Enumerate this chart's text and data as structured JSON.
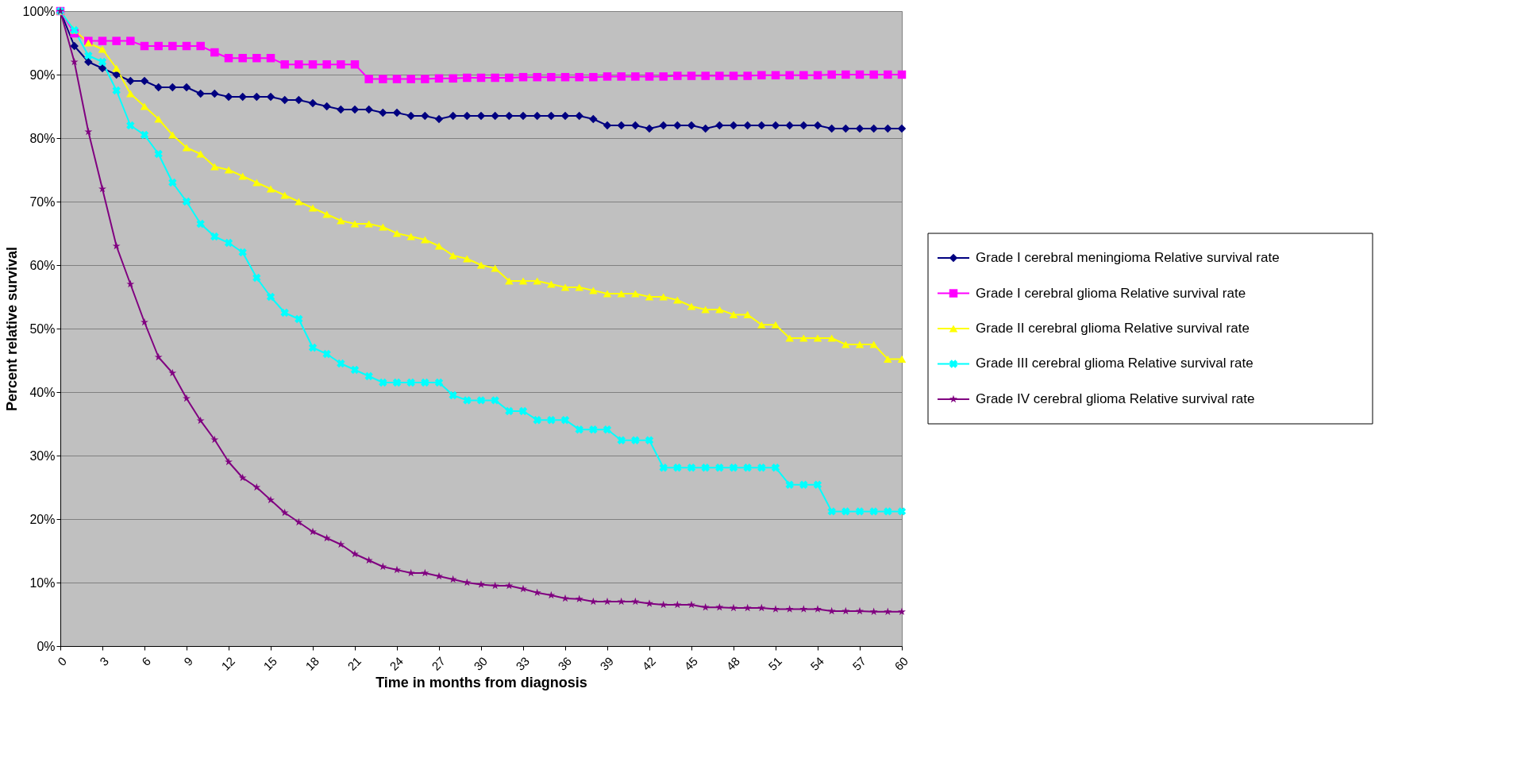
{
  "chart_data": {
    "type": "line",
    "xlabel": "Time in months from diagnosis",
    "ylabel": "Percent relative survival",
    "x": [
      0,
      1,
      2,
      3,
      4,
      5,
      6,
      7,
      8,
      9,
      10,
      11,
      12,
      13,
      14,
      15,
      16,
      17,
      18,
      19,
      20,
      21,
      22,
      23,
      24,
      25,
      26,
      27,
      28,
      29,
      30,
      31,
      32,
      33,
      34,
      35,
      36,
      37,
      38,
      39,
      40,
      41,
      42,
      43,
      44,
      45,
      46,
      47,
      48,
      49,
      50,
      51,
      52,
      53,
      54,
      55,
      56,
      57,
      58,
      59,
      60
    ],
    "xlim": [
      0,
      60
    ],
    "xticks": [
      0,
      3,
      6,
      9,
      12,
      15,
      18,
      21,
      24,
      27,
      30,
      33,
      36,
      39,
      42,
      45,
      48,
      51,
      54,
      57,
      60
    ],
    "ylim": [
      0,
      100
    ],
    "yticks": [
      {
        "value": 0,
        "label": "0%"
      },
      {
        "value": 10,
        "label": "10%"
      },
      {
        "value": 20,
        "label": "20%"
      },
      {
        "value": 30,
        "label": "30%"
      },
      {
        "value": 40,
        "label": "40%"
      },
      {
        "value": 50,
        "label": "50%"
      },
      {
        "value": 60,
        "label": "60%"
      },
      {
        "value": 70,
        "label": "70%"
      },
      {
        "value": 80,
        "label": "80%"
      },
      {
        "value": 90,
        "label": "90%"
      },
      {
        "value": 100,
        "label": "100%"
      }
    ],
    "grid": "y",
    "legend": "right",
    "series": [
      {
        "name": "Grade I cerebral meningioma Relative survival rate",
        "color": "#000080",
        "marker": "diamond",
        "values": [
          100,
          94.5,
          92,
          91,
          90,
          89,
          89,
          88,
          88,
          88,
          87,
          87,
          86.5,
          86.5,
          86.5,
          86.5,
          86,
          86,
          85.5,
          85,
          84.5,
          84.5,
          84.5,
          84,
          84,
          83.5,
          83.5,
          83,
          83.5,
          83.5,
          83.5,
          83.5,
          83.5,
          83.5,
          83.5,
          83.5,
          83.5,
          83.5,
          83,
          82,
          82,
          82,
          81.5,
          82,
          82,
          82,
          81.5,
          82,
          82,
          82,
          82,
          82,
          82,
          82,
          82,
          81.5,
          81.5,
          81.5,
          81.5,
          81.5,
          81.5
        ]
      },
      {
        "name": "Grade I cerebral glioma Relative survival rate",
        "color": "#ff00ff",
        "marker": "square",
        "values": [
          100,
          96.5,
          95.3,
          95.3,
          95.3,
          95.3,
          94.5,
          94.5,
          94.5,
          94.5,
          94.5,
          93.5,
          92.6,
          92.6,
          92.6,
          92.6,
          91.6,
          91.6,
          91.6,
          91.6,
          91.6,
          91.6,
          89.3,
          89.3,
          89.3,
          89.3,
          89.3,
          89.4,
          89.4,
          89.5,
          89.5,
          89.5,
          89.5,
          89.6,
          89.6,
          89.6,
          89.6,
          89.6,
          89.6,
          89.7,
          89.7,
          89.7,
          89.7,
          89.7,
          89.8,
          89.8,
          89.8,
          89.8,
          89.8,
          89.8,
          89.9,
          89.9,
          89.9,
          89.9,
          89.9,
          90,
          90,
          90,
          90,
          90,
          90
        ]
      },
      {
        "name": "Grade II cerebral glioma Relative survival rate",
        "color": "#ffff00",
        "marker": "triangle",
        "values": [
          100,
          97,
          95,
          94,
          91,
          87,
          85,
          83,
          80.5,
          78.5,
          77.5,
          75.5,
          75,
          74,
          73,
          72,
          71,
          70,
          69,
          68,
          67,
          66.5,
          66.5,
          66,
          65,
          64.5,
          64,
          63,
          61.5,
          61,
          60,
          59.5,
          57.5,
          57.5,
          57.5,
          57,
          56.5,
          56.5,
          56,
          55.5,
          55.5,
          55.5,
          55,
          55,
          54.5,
          53.5,
          53,
          53,
          52.2,
          52.2,
          50.6,
          50.6,
          48.5,
          48.5,
          48.5,
          48.5,
          47.5,
          47.5,
          47.5,
          45.2,
          45.2
        ]
      },
      {
        "name": "Grade III cerebral glioma Relative survival rate",
        "color": "#00ffff",
        "marker": "cross",
        "values": [
          100,
          97,
          93,
          92,
          87.5,
          82,
          80.5,
          77.5,
          73,
          70,
          66.5,
          64.5,
          63.5,
          62,
          58,
          55,
          52.5,
          51.5,
          47,
          46,
          44.5,
          43.5,
          42.5,
          41.5,
          41.5,
          41.5,
          41.5,
          41.5,
          39.5,
          38.7,
          38.7,
          38.7,
          37,
          37,
          35.6,
          35.6,
          35.6,
          34.1,
          34.1,
          34.1,
          32.4,
          32.4,
          32.4,
          28.1,
          28.1,
          28.1,
          28.1,
          28.1,
          28.1,
          28.1,
          28.1,
          28.1,
          25.4,
          25.4,
          25.4,
          21.2,
          21.2,
          21.2,
          21.2,
          21.2,
          21.2
        ]
      },
      {
        "name": "Grade IV cerebral glioma Relative survival rate",
        "color": "#800080",
        "marker": "star",
        "values": [
          100,
          92,
          81,
          72,
          63,
          57,
          51,
          45.5,
          43,
          39,
          35.5,
          32.5,
          29,
          26.5,
          25,
          23,
          21,
          19.5,
          18,
          17,
          16,
          14.5,
          13.5,
          12.5,
          12,
          11.5,
          11.5,
          11,
          10.5,
          10,
          9.7,
          9.5,
          9.5,
          9,
          8.4,
          8,
          7.5,
          7.4,
          7,
          7,
          7,
          7,
          6.7,
          6.5,
          6.5,
          6.5,
          6.1,
          6.1,
          6,
          6,
          6,
          5.8,
          5.8,
          5.8,
          5.8,
          5.5,
          5.5,
          5.5,
          5.4,
          5.4,
          5.4
        ]
      }
    ]
  }
}
